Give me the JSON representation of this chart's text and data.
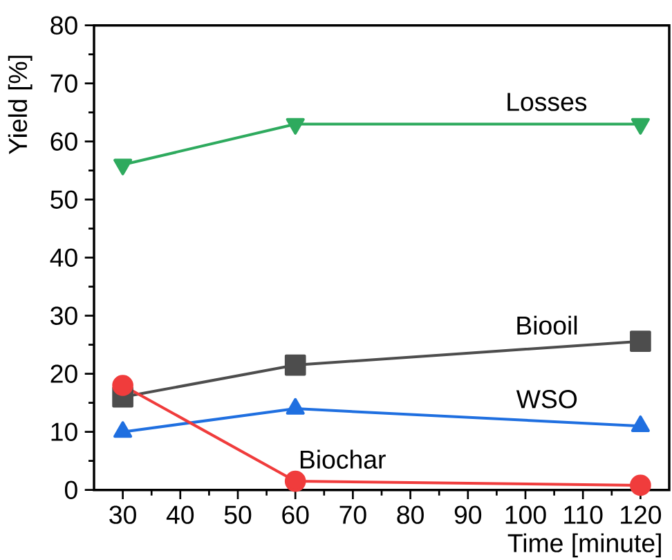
{
  "chart_data": {
    "type": "line",
    "xlabel": "Time [minute]",
    "ylabel": "Yield [%]",
    "x": [
      30,
      60,
      120
    ],
    "xlim": [
      25,
      125
    ],
    "xticks": [
      30,
      40,
      50,
      60,
      70,
      80,
      90,
      100,
      110,
      120
    ],
    "ylim": [
      0,
      80
    ],
    "yticks": [
      0,
      10,
      20,
      30,
      40,
      50,
      60,
      70,
      80
    ],
    "grid": false,
    "legend": false,
    "line_style": "solid",
    "series": [
      {
        "name": "Losses",
        "color": "#2eaa5e",
        "marker": "triangle-down",
        "values": [
          56,
          63,
          63
        ]
      },
      {
        "name": "Biooil",
        "color": "#4d4d4d",
        "marker": "square",
        "values": [
          16,
          21.5,
          25.6
        ]
      },
      {
        "name": "WSO",
        "color": "#1f6fe0",
        "marker": "triangle",
        "values": [
          10,
          14,
          11
        ]
      },
      {
        "name": "Biochar",
        "color": "#f03c3c",
        "marker": "circle",
        "values": [
          18,
          1.5,
          0.8
        ]
      }
    ]
  }
}
